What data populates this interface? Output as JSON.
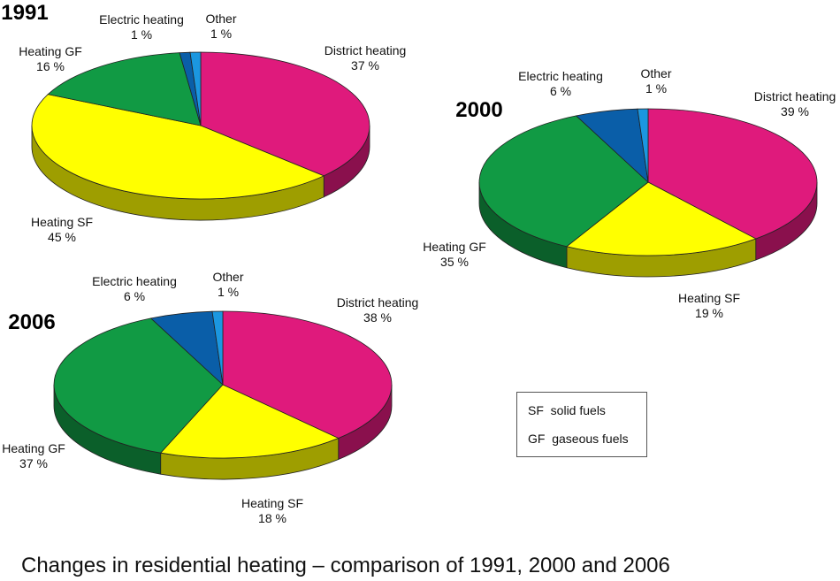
{
  "chart_data": [
    {
      "type": "pie",
      "title": "1991",
      "slices": [
        {
          "label": "District heating",
          "value": "37 %",
          "percent": 37
        },
        {
          "label": "Heating SF",
          "value": "45 %",
          "percent": 45
        },
        {
          "label": "Heating GF",
          "value": "16 %",
          "percent": 16
        },
        {
          "label": "Electric heating",
          "value": "1 %",
          "percent": 1
        },
        {
          "label": "Other",
          "value": "1 %",
          "percent": 1
        }
      ]
    },
    {
      "type": "pie",
      "title": "2000",
      "slices": [
        {
          "label": "District heating",
          "value": "39 %",
          "percent": 39
        },
        {
          "label": "Heating SF",
          "value": "19 %",
          "percent": 19
        },
        {
          "label": "Heating GF",
          "value": "35 %",
          "percent": 35
        },
        {
          "label": "Electric heating",
          "value": "6 %",
          "percent": 6
        },
        {
          "label": "Other",
          "value": "1 %",
          "percent": 1
        }
      ]
    },
    {
      "type": "pie",
      "title": "2006",
      "slices": [
        {
          "label": "District heating",
          "value": "38 %",
          "percent": 38
        },
        {
          "label": "Heating SF",
          "value": "18 %",
          "percent": 18
        },
        {
          "label": "Heating GF",
          "value": "37 %",
          "percent": 37
        },
        {
          "label": "Electric heating",
          "value": "6 %",
          "percent": 6
        },
        {
          "label": "Other",
          "value": "1 %",
          "percent": 1
        }
      ]
    }
  ],
  "colors": {
    "District heating": "#df1a7c",
    "Heating SF": "#ffff00",
    "Heating GF": "#119a44",
    "Electric heating": "#0a5ea8",
    "Other": "#1b97e0"
  },
  "legend": {
    "line1": "SF  solid fuels",
    "line2": "GF  gaseous fuels"
  },
  "footer": "Changes in residential heating – comparison of 1991, 2000 and 2006"
}
